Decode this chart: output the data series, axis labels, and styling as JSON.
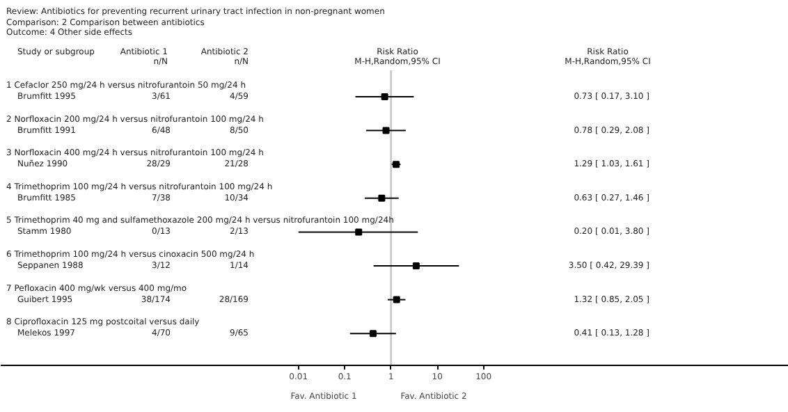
{
  "chart_data": {
    "type": "scatter",
    "orientation": "horizontal",
    "log": "x",
    "grid": false,
    "marker": "square",
    "color": "#000000",
    "title": "Review:  Antibiotics for preventing recurrent urinary tract infection in non-pregnant women",
    "subtitle": "Comparison:  2 Comparison between antibiotics\nOutcome:  4 Other side effects",
    "categories": [
      "Brumfitt 1995",
      "Brumfitt 1991",
      "Nuñez 1990",
      "Brumfitt 1985",
      "Stamm 1980",
      "Seppanen 1988",
      "Guibert 1995",
      "Melekos 1997"
    ],
    "values": [
      0.73,
      0.78,
      1.29,
      0.63,
      0.2,
      3.5,
      1.32,
      0.41
    ],
    "errors": [
      [
        0.17,
        3.1
      ],
      [
        0.29,
        2.08
      ],
      [
        1.03,
        1.61
      ],
      [
        0.27,
        1.46
      ],
      [
        0.01,
        3.8
      ],
      [
        0.42,
        29.39
      ],
      [
        0.85,
        2.05
      ],
      [
        0.13,
        1.28
      ]
    ],
    "xlim": [
      3.7e-09,
      390000000.0
    ],
    "xticks": [
      0.01,
      0.1,
      1,
      10,
      100
    ],
    "ref_lines": [
      {
        "axis": "x",
        "value": 1,
        "label": null,
        "color": "#cccccc"
      }
    ],
    "annotations": [
      "Study or subgroup",
      "Antibiotic 1\nn/N",
      "Antibiotic 2\nn/N",
      "Risk Ratio\nM-H,Random,95% CI",
      "Risk Ratio\nM-H,Random,95% CI",
      "1 Cefaclor 250 mg/24 h versus nitrofurantoin 50 mg/24 h",
      "3/61",
      "4/59",
      "0.73 [ 0.17, 3.10 ]",
      "2 Norfloxacin 200 mg/24 h versus nitrofurantoin 100 mg/24 h",
      "6/48",
      "8/50",
      "0.78 [ 0.29, 2.08 ]",
      "3 Norfloxacin 400 mg/24 h versus nitrofurantoin 100 mg/24 h",
      "28/29",
      "21/28",
      "1.29 [ 1.03, 1.61 ]",
      "4 Trimethoprim 100 mg/24 h versus nitrofurantoin 100 mg/24 h",
      "7/38",
      "10/34",
      "0.63 [ 0.27, 1.46 ]",
      "5 Trimethoprim 40 mg and sulfamethoxazole 200 mg/24 h versus nitrofurantoin 100 mg/24h",
      "0/13",
      "2/13",
      "0.20 [ 0.01, 3.80 ]",
      "6 Trimethoprim 100 mg/24 h versus cinoxacin 500 mg/24 h",
      "3/12",
      "1/14",
      "3.50 [ 0.42, 29.39 ]",
      "7 Pefloxacin 400 mg/wk versus 400 mg/mo",
      "38/174",
      "28/169",
      "1.32 [ 0.85, 2.05 ]",
      "8 Ciprofloxacin 125 mg postcoital versus daily",
      "4/70",
      "9/65",
      "0.41 [ 0.13, 1.28 ]",
      "Fav. Antibiotic 1",
      "Fav. Antibiotic 2"
    ]
  }
}
